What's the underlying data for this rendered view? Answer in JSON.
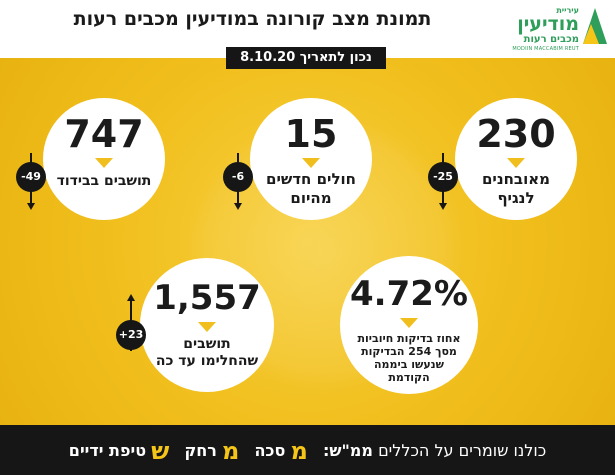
{
  "header": {
    "title": "תמונת מצב קורונה במודיעין מכבים רעות",
    "date_badge": "נכון לתאריך 8.10.20"
  },
  "logo": {
    "small": "עיריית",
    "main": "מודיעין",
    "sub": "מכבים רעות",
    "english": "MODIIN MACCABIM REUT"
  },
  "stats": {
    "verified": {
      "value": "230",
      "label_line1": "מאובחנים",
      "label_line2": "לנגיף",
      "delta": "-25"
    },
    "new_patients": {
      "value": "15",
      "label_line1": "חולים חדשים",
      "label_line2": "מהיום",
      "delta": "-6"
    },
    "isolation": {
      "value": "747",
      "label_line1": "תושבים בבידוד",
      "delta": "-49"
    },
    "positive_rate": {
      "value": "4.72%",
      "label_line1": "אחוז בדיקות חיוביות",
      "label_line2": "מסך 254 הבדיקות",
      "label_line3": "שנעשו ביממה",
      "label_line4": "הקודמת"
    },
    "recovered": {
      "value": "1,557",
      "label_line1": "תושבים",
      "label_line2": "שהחלימו עד כה",
      "delta": "+23"
    }
  },
  "footer": {
    "intro": "כולנו שומרים על הכללים ",
    "mms": "ממ\"ש:",
    "m1_letter": "מ",
    "m1_rest": "סכה",
    "m2_letter": "מ",
    "m2_rest": "רחק",
    "s_letter": "ש",
    "s_rest": "טיפת ידיים"
  },
  "colors": {
    "yellow": "#f1bf1d",
    "dark": "#161616",
    "green": "#2e9e5a"
  }
}
